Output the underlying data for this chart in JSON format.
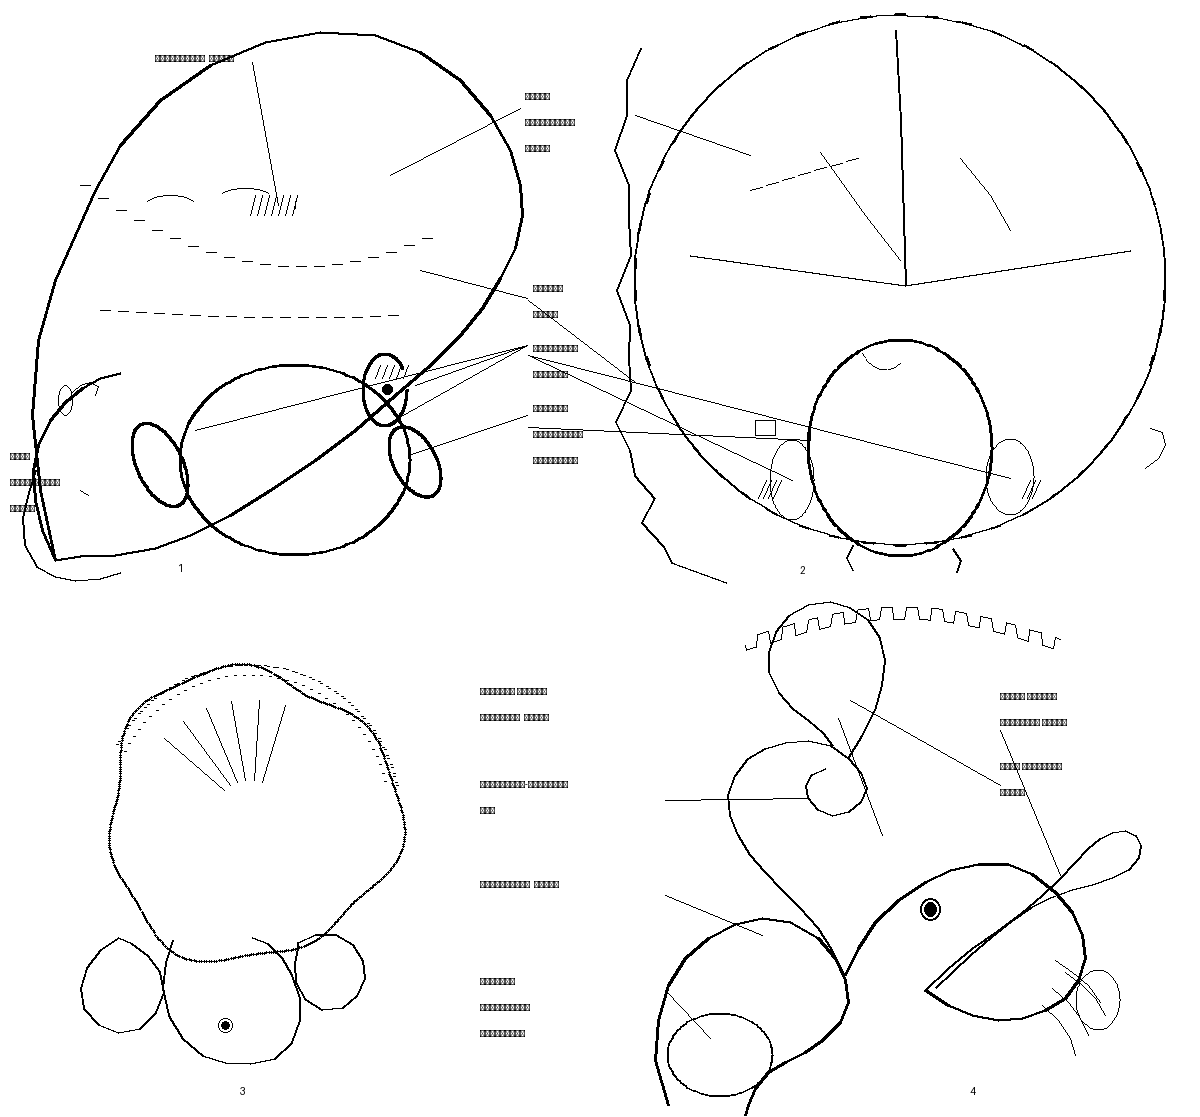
{
  "background_color": "#ffffff",
  "figsize": [
    12.0,
    11.17
  ],
  "dpi": 100
}
